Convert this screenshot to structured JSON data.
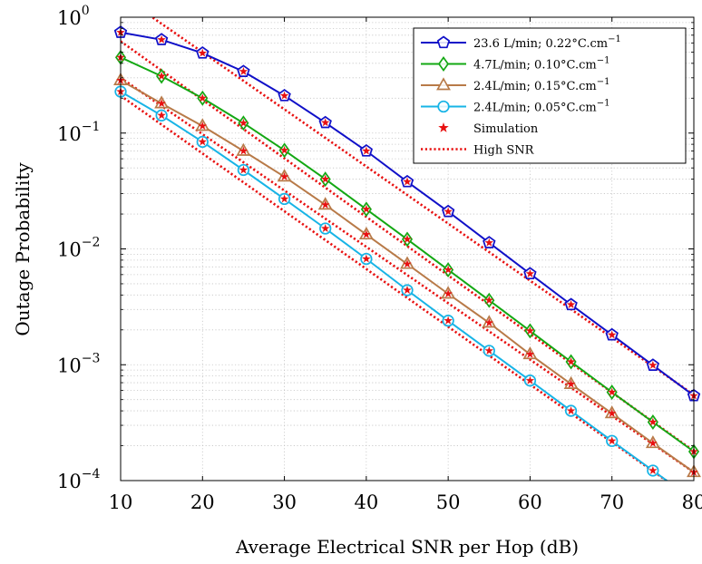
{
  "chart_data": {
    "type": "line",
    "xlabel": "Average Electrical SNR per Hop (dB)",
    "ylabel": "Outage Probability",
    "x_scale": "linear",
    "y_scale": "log",
    "xlim": [
      10,
      80
    ],
    "ylim": [
      0.0001,
      1
    ],
    "x_ticks": [
      10,
      20,
      30,
      40,
      50,
      60,
      70,
      80
    ],
    "x_tick_labels": [
      "10",
      "20",
      "30",
      "40",
      "50",
      "60",
      "70",
      "80"
    ],
    "y_ticks": [
      0.0001,
      0.001,
      0.01,
      0.1,
      1
    ],
    "y_tick_labels": [
      {
        "base": "10",
        "exp": "−4"
      },
      {
        "base": "10",
        "exp": "−3"
      },
      {
        "base": "10",
        "exp": "−2"
      },
      {
        "base": "10",
        "exp": "−1"
      },
      {
        "base": "10",
        "exp": "0"
      }
    ],
    "grid": true,
    "legend_position": "top-right",
    "x": [
      10,
      15,
      20,
      25,
      30,
      35,
      40,
      45,
      50,
      55,
      60,
      65,
      70,
      75,
      80
    ],
    "series": [
      {
        "name": "23.6 L/min; 0.22°C.cm−1",
        "color": "#1010c8",
        "marker": "pentagon",
        "values": [
          0.74,
          0.64,
          0.49,
          0.34,
          0.21,
          0.123,
          0.07,
          0.038,
          0.021,
          0.0113,
          0.0061,
          0.0033,
          0.00181,
          0.00099,
          0.00054
        ]
      },
      {
        "name": "4.7L/min; 0.10°C.cm−1",
        "color": "#13a813",
        "marker": "diamond",
        "values": [
          0.45,
          0.31,
          0.2,
          0.122,
          0.071,
          0.04,
          0.022,
          0.0121,
          0.0066,
          0.0036,
          0.00196,
          0.00106,
          0.00058,
          0.00032,
          0.000178
        ]
      },
      {
        "name": "2.4L/min; 0.15°C.cm−1",
        "color": "#b87a48",
        "marker": "triangle",
        "values": [
          0.285,
          0.18,
          0.115,
          0.07,
          0.042,
          0.024,
          0.0133,
          0.0074,
          0.0041,
          0.0023,
          0.00123,
          0.00068,
          0.00038,
          0.00021,
          0.000118
        ]
      },
      {
        "name": "2.4L/min; 0.05°C.cm−1",
        "color": "#17b4e6",
        "marker": "circle",
        "values": [
          0.228,
          0.142,
          0.084,
          0.048,
          0.027,
          0.015,
          0.0082,
          0.0044,
          0.0024,
          0.00132,
          0.00073,
          0.0004,
          0.00022,
          0.000122,
          6.77e-05
        ]
      }
    ],
    "simulation": {
      "name": "Simulation",
      "color": "#e81010",
      "marker": "star"
    },
    "high_snr": {
      "name": "High SNR",
      "color": "#e81010",
      "style": "dotted",
      "lines": [
        {
          "x": [
            10,
            80
          ],
          "y": [
            1.55,
            0.00055
          ]
        },
        {
          "x": [
            10,
            80
          ],
          "y": [
            0.62,
            0.00018
          ]
        },
        {
          "x": [
            10,
            80
          ],
          "y": [
            0.3,
            0.000118
          ]
        },
        {
          "x": [
            10,
            80
          ],
          "y": [
            0.21,
            6.8e-05
          ]
        }
      ]
    }
  }
}
